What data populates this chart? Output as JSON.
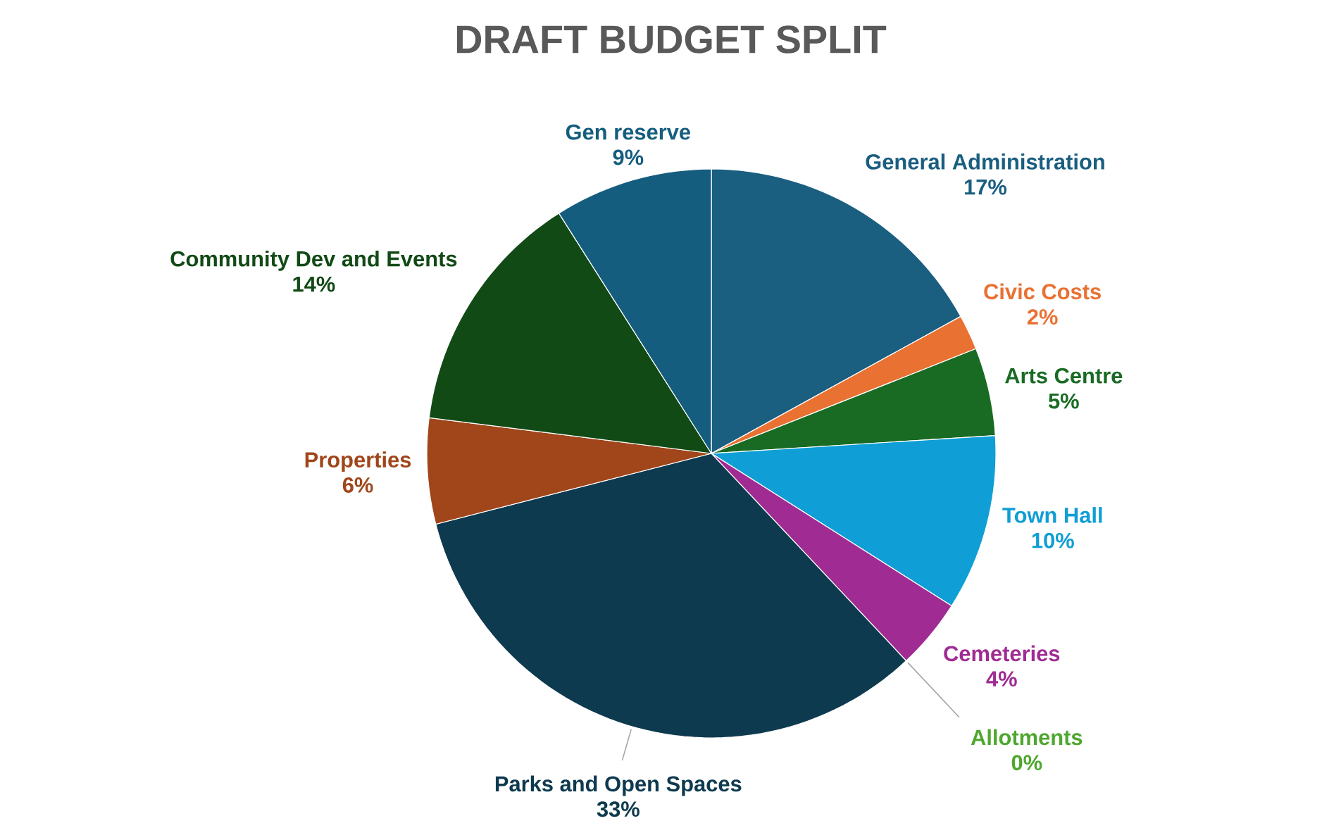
{
  "chart_data": {
    "type": "pie",
    "title": "DRAFT BUDGET SPLIT",
    "categories": [
      "General Administration",
      "Civic Costs",
      "Arts Centre",
      "Town Hall",
      "Cemeteries",
      "Allotments",
      "Parks and Open Spaces",
      "Properties",
      "Community Dev and Events",
      "Gen reserve"
    ],
    "values": [
      17,
      2,
      5,
      10,
      4,
      0,
      33,
      6,
      14,
      9
    ],
    "value_labels": [
      "17%",
      "2%",
      "5%",
      "10%",
      "4%",
      "0%",
      "33%",
      "6%",
      "14%",
      "9%"
    ],
    "colors": [
      "#1a5e80",
      "#e97132",
      "#196b24",
      "#0f9ed5",
      "#a02b93",
      "#4ea72e",
      "#0e3a4f",
      "#a0461a",
      "#124a16",
      "#155d7e"
    ]
  }
}
